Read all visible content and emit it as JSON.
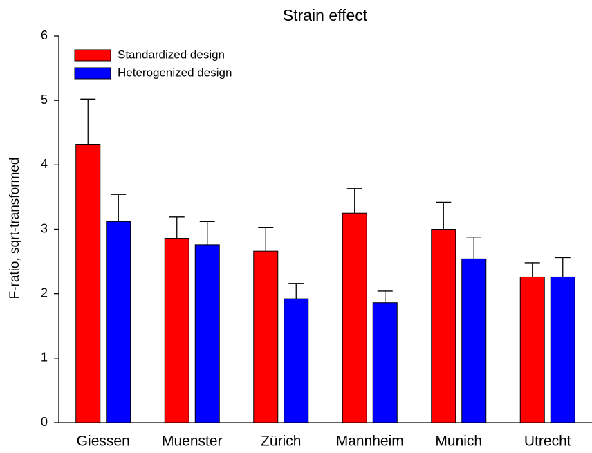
{
  "chart_data": {
    "type": "bar",
    "title": "Strain effect",
    "y_label": "F-ratio, sqrt-transformed",
    "categories": [
      "Giessen",
      "Muenster",
      "Zürich",
      "Mannheim",
      "Munich",
      "Utrecht"
    ],
    "series": [
      {
        "name": "Standardized design",
        "color": "#ff0000",
        "values": [
          4.32,
          2.86,
          2.66,
          3.25,
          3.0,
          2.26
        ],
        "errors": [
          0.7,
          0.33,
          0.37,
          0.38,
          0.42,
          0.22
        ]
      },
      {
        "name": "Heterogenized design",
        "color": "#0000ff",
        "values": [
          3.12,
          2.76,
          1.92,
          1.86,
          2.54,
          2.26
        ],
        "errors": [
          0.42,
          0.36,
          0.24,
          0.18,
          0.34,
          0.3
        ]
      }
    ],
    "ylim": [
      0,
      6
    ],
    "yticks": [
      0,
      1,
      2,
      3,
      4,
      5,
      6
    ],
    "legend": "upper left",
    "grid": false
  }
}
